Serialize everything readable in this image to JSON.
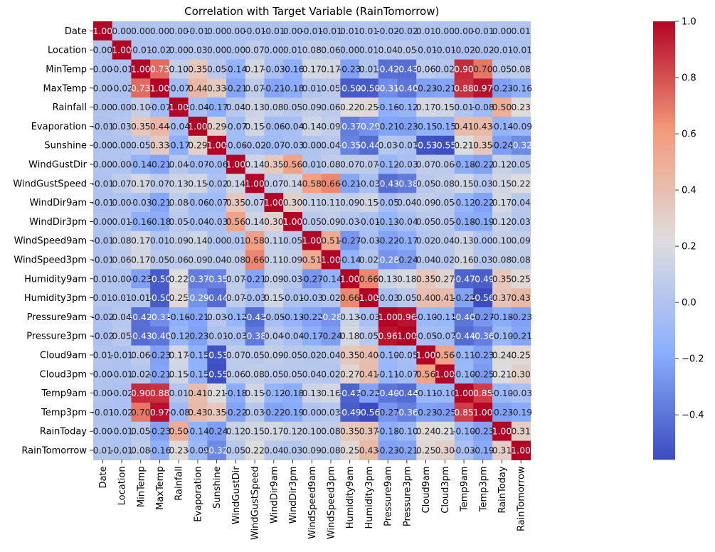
{
  "chart_data": {
    "type": "heatmap",
    "title": "Correlation with Target Variable (RainTomorrow)",
    "xlabel": "",
    "ylabel": "",
    "labels": [
      "Date",
      "Location",
      "MinTemp",
      "MaxTemp",
      "Rainfall",
      "Evaporation",
      "Sunshine",
      "WindGustDir",
      "WindGustSpeed",
      "WindDir9am",
      "WindDir3pm",
      "WindSpeed9am",
      "WindSpeed3pm",
      "Humidity9am",
      "Humidity3pm",
      "Pressure9am",
      "Pressure3pm",
      "Cloud9am",
      "Cloud3pm",
      "Temp9am",
      "Temp3pm",
      "RainToday",
      "RainTomorrow"
    ],
    "matrix": [
      [
        1.0,
        -0.0,
        -0.0,
        -0.0,
        0.0,
        -0.01,
        0.0,
        -0.0,
        -0.01,
        -0.01,
        0.0,
        -0.01,
        -0.01,
        0.01,
        0.01,
        -0.02,
        -0.02,
        0.01,
        -0.0,
        -0.0,
        -0.01,
        0.0,
        0.01
      ],
      [
        -0.0,
        1.0,
        -0.01,
        -0.02,
        -0.0,
        0.03,
        0.0,
        -0.0,
        0.07,
        -0.0,
        0.01,
        0.08,
        0.06,
        -0.0,
        0.01,
        0.04,
        0.05,
        -0.01,
        -0.01,
        -0.02,
        -0.02,
        -0.01,
        -0.01
      ],
      [
        -0.0,
        -0.01,
        1.0,
        0.73,
        0.1,
        0.35,
        0.05,
        -0.14,
        0.17,
        -0.03,
        -0.16,
        0.17,
        0.17,
        -0.23,
        0.01,
        -0.42,
        -0.43,
        0.06,
        0.02,
        0.9,
        0.7,
        0.05,
        0.08
      ],
      [
        -0.0,
        -0.02,
        0.73,
        1.0,
        -0.07,
        0.44,
        0.33,
        -0.21,
        0.07,
        -0.21,
        -0.18,
        0.01,
        0.05,
        -0.5,
        -0.5,
        -0.31,
        -0.4,
        -0.23,
        -0.21,
        0.88,
        0.97,
        -0.23,
        -0.16
      ],
      [
        0.0,
        -0.0,
        0.1,
        -0.07,
        1.0,
        -0.04,
        -0.17,
        0.04,
        0.13,
        0.08,
        0.05,
        0.09,
        0.06,
        0.22,
        0.25,
        -0.16,
        -0.12,
        0.17,
        0.15,
        0.01,
        -0.08,
        0.5,
        0.23
      ],
      [
        -0.01,
        0.03,
        0.35,
        0.44,
        -0.04,
        1.0,
        0.29,
        -0.07,
        0.15,
        -0.06,
        -0.04,
        0.14,
        0.09,
        -0.37,
        -0.29,
        -0.21,
        -0.23,
        -0.15,
        -0.15,
        0.41,
        0.43,
        -0.14,
        -0.09
      ],
      [
        0.0,
        0.0,
        0.05,
        0.33,
        -0.17,
        0.29,
        1.0,
        -0.06,
        -0.02,
        -0.07,
        -0.03,
        0.0,
        0.04,
        -0.35,
        -0.44,
        0.03,
        -0.01,
        -0.53,
        -0.55,
        0.21,
        0.35,
        -0.24,
        -0.32
      ],
      [
        -0.0,
        -0.0,
        -0.14,
        -0.21,
        0.04,
        -0.07,
        -0.06,
        1.0,
        0.14,
        0.35,
        0.56,
        0.01,
        0.08,
        0.07,
        0.07,
        -0.12,
        -0.03,
        0.07,
        0.06,
        -0.18,
        -0.22,
        0.12,
        0.05
      ],
      [
        -0.01,
        0.07,
        0.17,
        0.07,
        0.13,
        0.15,
        -0.02,
        0.14,
        1.0,
        0.07,
        0.14,
        0.58,
        0.66,
        -0.21,
        -0.03,
        -0.43,
        -0.38,
        0.05,
        0.08,
        0.15,
        0.03,
        0.15,
        0.22
      ],
      [
        -0.01,
        -0.0,
        -0.03,
        -0.21,
        0.08,
        -0.06,
        -0.07,
        0.35,
        0.07,
        1.0,
        0.3,
        0.11,
        0.11,
        0.09,
        0.15,
        -0.05,
        0.04,
        0.09,
        0.05,
        -0.12,
        -0.22,
        0.17,
        0.04
      ],
      [
        0.0,
        0.01,
        -0.16,
        -0.18,
        0.05,
        -0.04,
        -0.03,
        0.56,
        0.14,
        0.3,
        1.0,
        0.05,
        0.09,
        0.03,
        -0.01,
        -0.13,
        -0.04,
        0.05,
        0.05,
        -0.18,
        -0.19,
        0.12,
        0.03
      ],
      [
        -0.01,
        0.08,
        0.17,
        0.01,
        0.09,
        0.14,
        0.0,
        0.01,
        0.58,
        0.11,
        0.05,
        1.0,
        0.51,
        -0.27,
        -0.03,
        -0.22,
        -0.17,
        0.02,
        0.04,
        0.13,
        0.0,
        0.1,
        0.09
      ],
      [
        -0.01,
        0.06,
        0.17,
        0.05,
        0.06,
        0.09,
        0.04,
        0.08,
        0.66,
        0.11,
        0.09,
        0.51,
        1.0,
        -0.14,
        0.02,
        -0.28,
        -0.24,
        0.04,
        0.02,
        0.16,
        0.03,
        0.08,
        0.08
      ],
      [
        0.01,
        -0.0,
        -0.23,
        -0.5,
        0.22,
        -0.37,
        -0.35,
        0.07,
        -0.21,
        0.09,
        0.03,
        -0.27,
        -0.14,
        1.0,
        0.66,
        0.13,
        0.18,
        0.35,
        0.27,
        -0.47,
        -0.49,
        0.35,
        0.25
      ],
      [
        0.01,
        0.01,
        0.01,
        -0.5,
        0.25,
        -0.29,
        -0.44,
        0.07,
        -0.03,
        0.15,
        -0.01,
        -0.03,
        0.02,
        0.66,
        1.0,
        -0.03,
        0.05,
        0.4,
        0.41,
        -0.22,
        -0.56,
        0.37,
        0.43
      ],
      [
        -0.02,
        0.04,
        -0.42,
        -0.31,
        -0.16,
        -0.21,
        0.03,
        -0.12,
        -0.43,
        -0.05,
        -0.13,
        -0.22,
        -0.28,
        0.13,
        -0.03,
        1.0,
        0.96,
        -0.1,
        -0.11,
        -0.4,
        -0.27,
        -0.18,
        -0.23
      ],
      [
        -0.02,
        0.05,
        -0.43,
        -0.4,
        -0.12,
        -0.23,
        -0.01,
        -0.03,
        -0.38,
        0.04,
        -0.04,
        -0.17,
        -0.24,
        0.18,
        0.05,
        0.96,
        1.0,
        -0.05,
        -0.07,
        -0.44,
        -0.36,
        -0.1,
        -0.21
      ],
      [
        0.01,
        -0.01,
        0.06,
        -0.23,
        0.17,
        -0.15,
        -0.53,
        0.07,
        0.05,
        0.09,
        0.05,
        0.02,
        0.04,
        0.35,
        0.4,
        -0.1,
        -0.05,
        1.0,
        0.56,
        -0.11,
        -0.23,
        0.24,
        0.25
      ],
      [
        -0.0,
        -0.01,
        0.02,
        -0.21,
        0.15,
        -0.15,
        -0.55,
        0.06,
        0.08,
        0.05,
        0.05,
        0.04,
        0.02,
        0.27,
        0.41,
        -0.11,
        -0.07,
        0.56,
        1.0,
        -0.1,
        -0.25,
        0.21,
        0.3
      ],
      [
        -0.0,
        -0.02,
        0.9,
        0.88,
        0.01,
        0.41,
        0.21,
        -0.18,
        0.15,
        -0.12,
        -0.18,
        0.13,
        0.16,
        -0.47,
        -0.22,
        -0.4,
        -0.44,
        -0.11,
        -0.1,
        1.0,
        0.85,
        -0.1,
        -0.03
      ],
      [
        -0.01,
        -0.02,
        0.7,
        0.97,
        -0.08,
        0.43,
        0.35,
        -0.22,
        0.03,
        -0.22,
        -0.19,
        0.0,
        0.03,
        -0.49,
        -0.56,
        -0.27,
        -0.36,
        -0.23,
        -0.25,
        0.85,
        1.0,
        -0.23,
        -0.19
      ],
      [
        0.0,
        -0.01,
        0.05,
        -0.23,
        0.5,
        -0.14,
        -0.24,
        0.12,
        0.15,
        0.17,
        0.12,
        0.1,
        0.08,
        0.35,
        0.37,
        -0.18,
        -0.1,
        0.24,
        0.21,
        -0.1,
        -0.23,
        1.0,
        0.31
      ],
      [
        0.01,
        -0.01,
        0.08,
        -0.16,
        0.23,
        -0.09,
        -0.32,
        0.05,
        0.22,
        0.04,
        0.03,
        0.09,
        0.08,
        0.25,
        0.43,
        -0.23,
        -0.21,
        0.25,
        0.3,
        -0.03,
        -0.19,
        0.31,
        1.0
      ]
    ],
    "vmin": -0.56,
    "vmax": 1.0,
    "colormap": "coolwarm",
    "annotation_format": "2 decimals",
    "colorbar_ticks": [
      -0.4,
      -0.2,
      0.0,
      0.2,
      0.4,
      0.6,
      0.8,
      1.0
    ],
    "colorbar_tick_labels": [
      "−0.4",
      "−0.2",
      "0.0",
      "0.2",
      "0.4",
      "0.6",
      "0.8",
      "1.0"
    ]
  }
}
